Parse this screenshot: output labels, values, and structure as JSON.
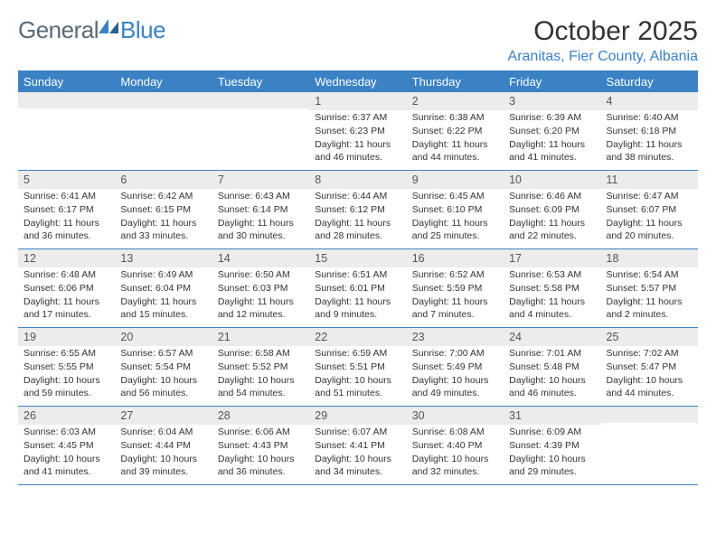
{
  "logo": {
    "part1": "General",
    "part2": "Blue"
  },
  "title": "October 2025",
  "location": "Aranitas, Fier County, Albania",
  "colors": {
    "accent": "#3b82c4",
    "header_bg": "#3b82c4",
    "header_text": "#ffffff",
    "daynum_bg": "#ececec",
    "text": "#333333",
    "logo_gray": "#5a6a78"
  },
  "day_names": [
    "Sunday",
    "Monday",
    "Tuesday",
    "Wednesday",
    "Thursday",
    "Friday",
    "Saturday"
  ],
  "weeks": [
    [
      {
        "num": "",
        "lines": []
      },
      {
        "num": "",
        "lines": []
      },
      {
        "num": "",
        "lines": []
      },
      {
        "num": "1",
        "lines": [
          "Sunrise: 6:37 AM",
          "Sunset: 6:23 PM",
          "Daylight: 11 hours",
          "and 46 minutes."
        ]
      },
      {
        "num": "2",
        "lines": [
          "Sunrise: 6:38 AM",
          "Sunset: 6:22 PM",
          "Daylight: 11 hours",
          "and 44 minutes."
        ]
      },
      {
        "num": "3",
        "lines": [
          "Sunrise: 6:39 AM",
          "Sunset: 6:20 PM",
          "Daylight: 11 hours",
          "and 41 minutes."
        ]
      },
      {
        "num": "4",
        "lines": [
          "Sunrise: 6:40 AM",
          "Sunset: 6:18 PM",
          "Daylight: 11 hours",
          "and 38 minutes."
        ]
      }
    ],
    [
      {
        "num": "5",
        "lines": [
          "Sunrise: 6:41 AM",
          "Sunset: 6:17 PM",
          "Daylight: 11 hours",
          "and 36 minutes."
        ]
      },
      {
        "num": "6",
        "lines": [
          "Sunrise: 6:42 AM",
          "Sunset: 6:15 PM",
          "Daylight: 11 hours",
          "and 33 minutes."
        ]
      },
      {
        "num": "7",
        "lines": [
          "Sunrise: 6:43 AM",
          "Sunset: 6:14 PM",
          "Daylight: 11 hours",
          "and 30 minutes."
        ]
      },
      {
        "num": "8",
        "lines": [
          "Sunrise: 6:44 AM",
          "Sunset: 6:12 PM",
          "Daylight: 11 hours",
          "and 28 minutes."
        ]
      },
      {
        "num": "9",
        "lines": [
          "Sunrise: 6:45 AM",
          "Sunset: 6:10 PM",
          "Daylight: 11 hours",
          "and 25 minutes."
        ]
      },
      {
        "num": "10",
        "lines": [
          "Sunrise: 6:46 AM",
          "Sunset: 6:09 PM",
          "Daylight: 11 hours",
          "and 22 minutes."
        ]
      },
      {
        "num": "11",
        "lines": [
          "Sunrise: 6:47 AM",
          "Sunset: 6:07 PM",
          "Daylight: 11 hours",
          "and 20 minutes."
        ]
      }
    ],
    [
      {
        "num": "12",
        "lines": [
          "Sunrise: 6:48 AM",
          "Sunset: 6:06 PM",
          "Daylight: 11 hours",
          "and 17 minutes."
        ]
      },
      {
        "num": "13",
        "lines": [
          "Sunrise: 6:49 AM",
          "Sunset: 6:04 PM",
          "Daylight: 11 hours",
          "and 15 minutes."
        ]
      },
      {
        "num": "14",
        "lines": [
          "Sunrise: 6:50 AM",
          "Sunset: 6:03 PM",
          "Daylight: 11 hours",
          "and 12 minutes."
        ]
      },
      {
        "num": "15",
        "lines": [
          "Sunrise: 6:51 AM",
          "Sunset: 6:01 PM",
          "Daylight: 11 hours",
          "and 9 minutes."
        ]
      },
      {
        "num": "16",
        "lines": [
          "Sunrise: 6:52 AM",
          "Sunset: 5:59 PM",
          "Daylight: 11 hours",
          "and 7 minutes."
        ]
      },
      {
        "num": "17",
        "lines": [
          "Sunrise: 6:53 AM",
          "Sunset: 5:58 PM",
          "Daylight: 11 hours",
          "and 4 minutes."
        ]
      },
      {
        "num": "18",
        "lines": [
          "Sunrise: 6:54 AM",
          "Sunset: 5:57 PM",
          "Daylight: 11 hours",
          "and 2 minutes."
        ]
      }
    ],
    [
      {
        "num": "19",
        "lines": [
          "Sunrise: 6:55 AM",
          "Sunset: 5:55 PM",
          "Daylight: 10 hours",
          "and 59 minutes."
        ]
      },
      {
        "num": "20",
        "lines": [
          "Sunrise: 6:57 AM",
          "Sunset: 5:54 PM",
          "Daylight: 10 hours",
          "and 56 minutes."
        ]
      },
      {
        "num": "21",
        "lines": [
          "Sunrise: 6:58 AM",
          "Sunset: 5:52 PM",
          "Daylight: 10 hours",
          "and 54 minutes."
        ]
      },
      {
        "num": "22",
        "lines": [
          "Sunrise: 6:59 AM",
          "Sunset: 5:51 PM",
          "Daylight: 10 hours",
          "and 51 minutes."
        ]
      },
      {
        "num": "23",
        "lines": [
          "Sunrise: 7:00 AM",
          "Sunset: 5:49 PM",
          "Daylight: 10 hours",
          "and 49 minutes."
        ]
      },
      {
        "num": "24",
        "lines": [
          "Sunrise: 7:01 AM",
          "Sunset: 5:48 PM",
          "Daylight: 10 hours",
          "and 46 minutes."
        ]
      },
      {
        "num": "25",
        "lines": [
          "Sunrise: 7:02 AM",
          "Sunset: 5:47 PM",
          "Daylight: 10 hours",
          "and 44 minutes."
        ]
      }
    ],
    [
      {
        "num": "26",
        "lines": [
          "Sunrise: 6:03 AM",
          "Sunset: 4:45 PM",
          "Daylight: 10 hours",
          "and 41 minutes."
        ]
      },
      {
        "num": "27",
        "lines": [
          "Sunrise: 6:04 AM",
          "Sunset: 4:44 PM",
          "Daylight: 10 hours",
          "and 39 minutes."
        ]
      },
      {
        "num": "28",
        "lines": [
          "Sunrise: 6:06 AM",
          "Sunset: 4:43 PM",
          "Daylight: 10 hours",
          "and 36 minutes."
        ]
      },
      {
        "num": "29",
        "lines": [
          "Sunrise: 6:07 AM",
          "Sunset: 4:41 PM",
          "Daylight: 10 hours",
          "and 34 minutes."
        ]
      },
      {
        "num": "30",
        "lines": [
          "Sunrise: 6:08 AM",
          "Sunset: 4:40 PM",
          "Daylight: 10 hours",
          "and 32 minutes."
        ]
      },
      {
        "num": "31",
        "lines": [
          "Sunrise: 6:09 AM",
          "Sunset: 4:39 PM",
          "Daylight: 10 hours",
          "and 29 minutes."
        ]
      },
      {
        "num": "",
        "lines": []
      }
    ]
  ]
}
